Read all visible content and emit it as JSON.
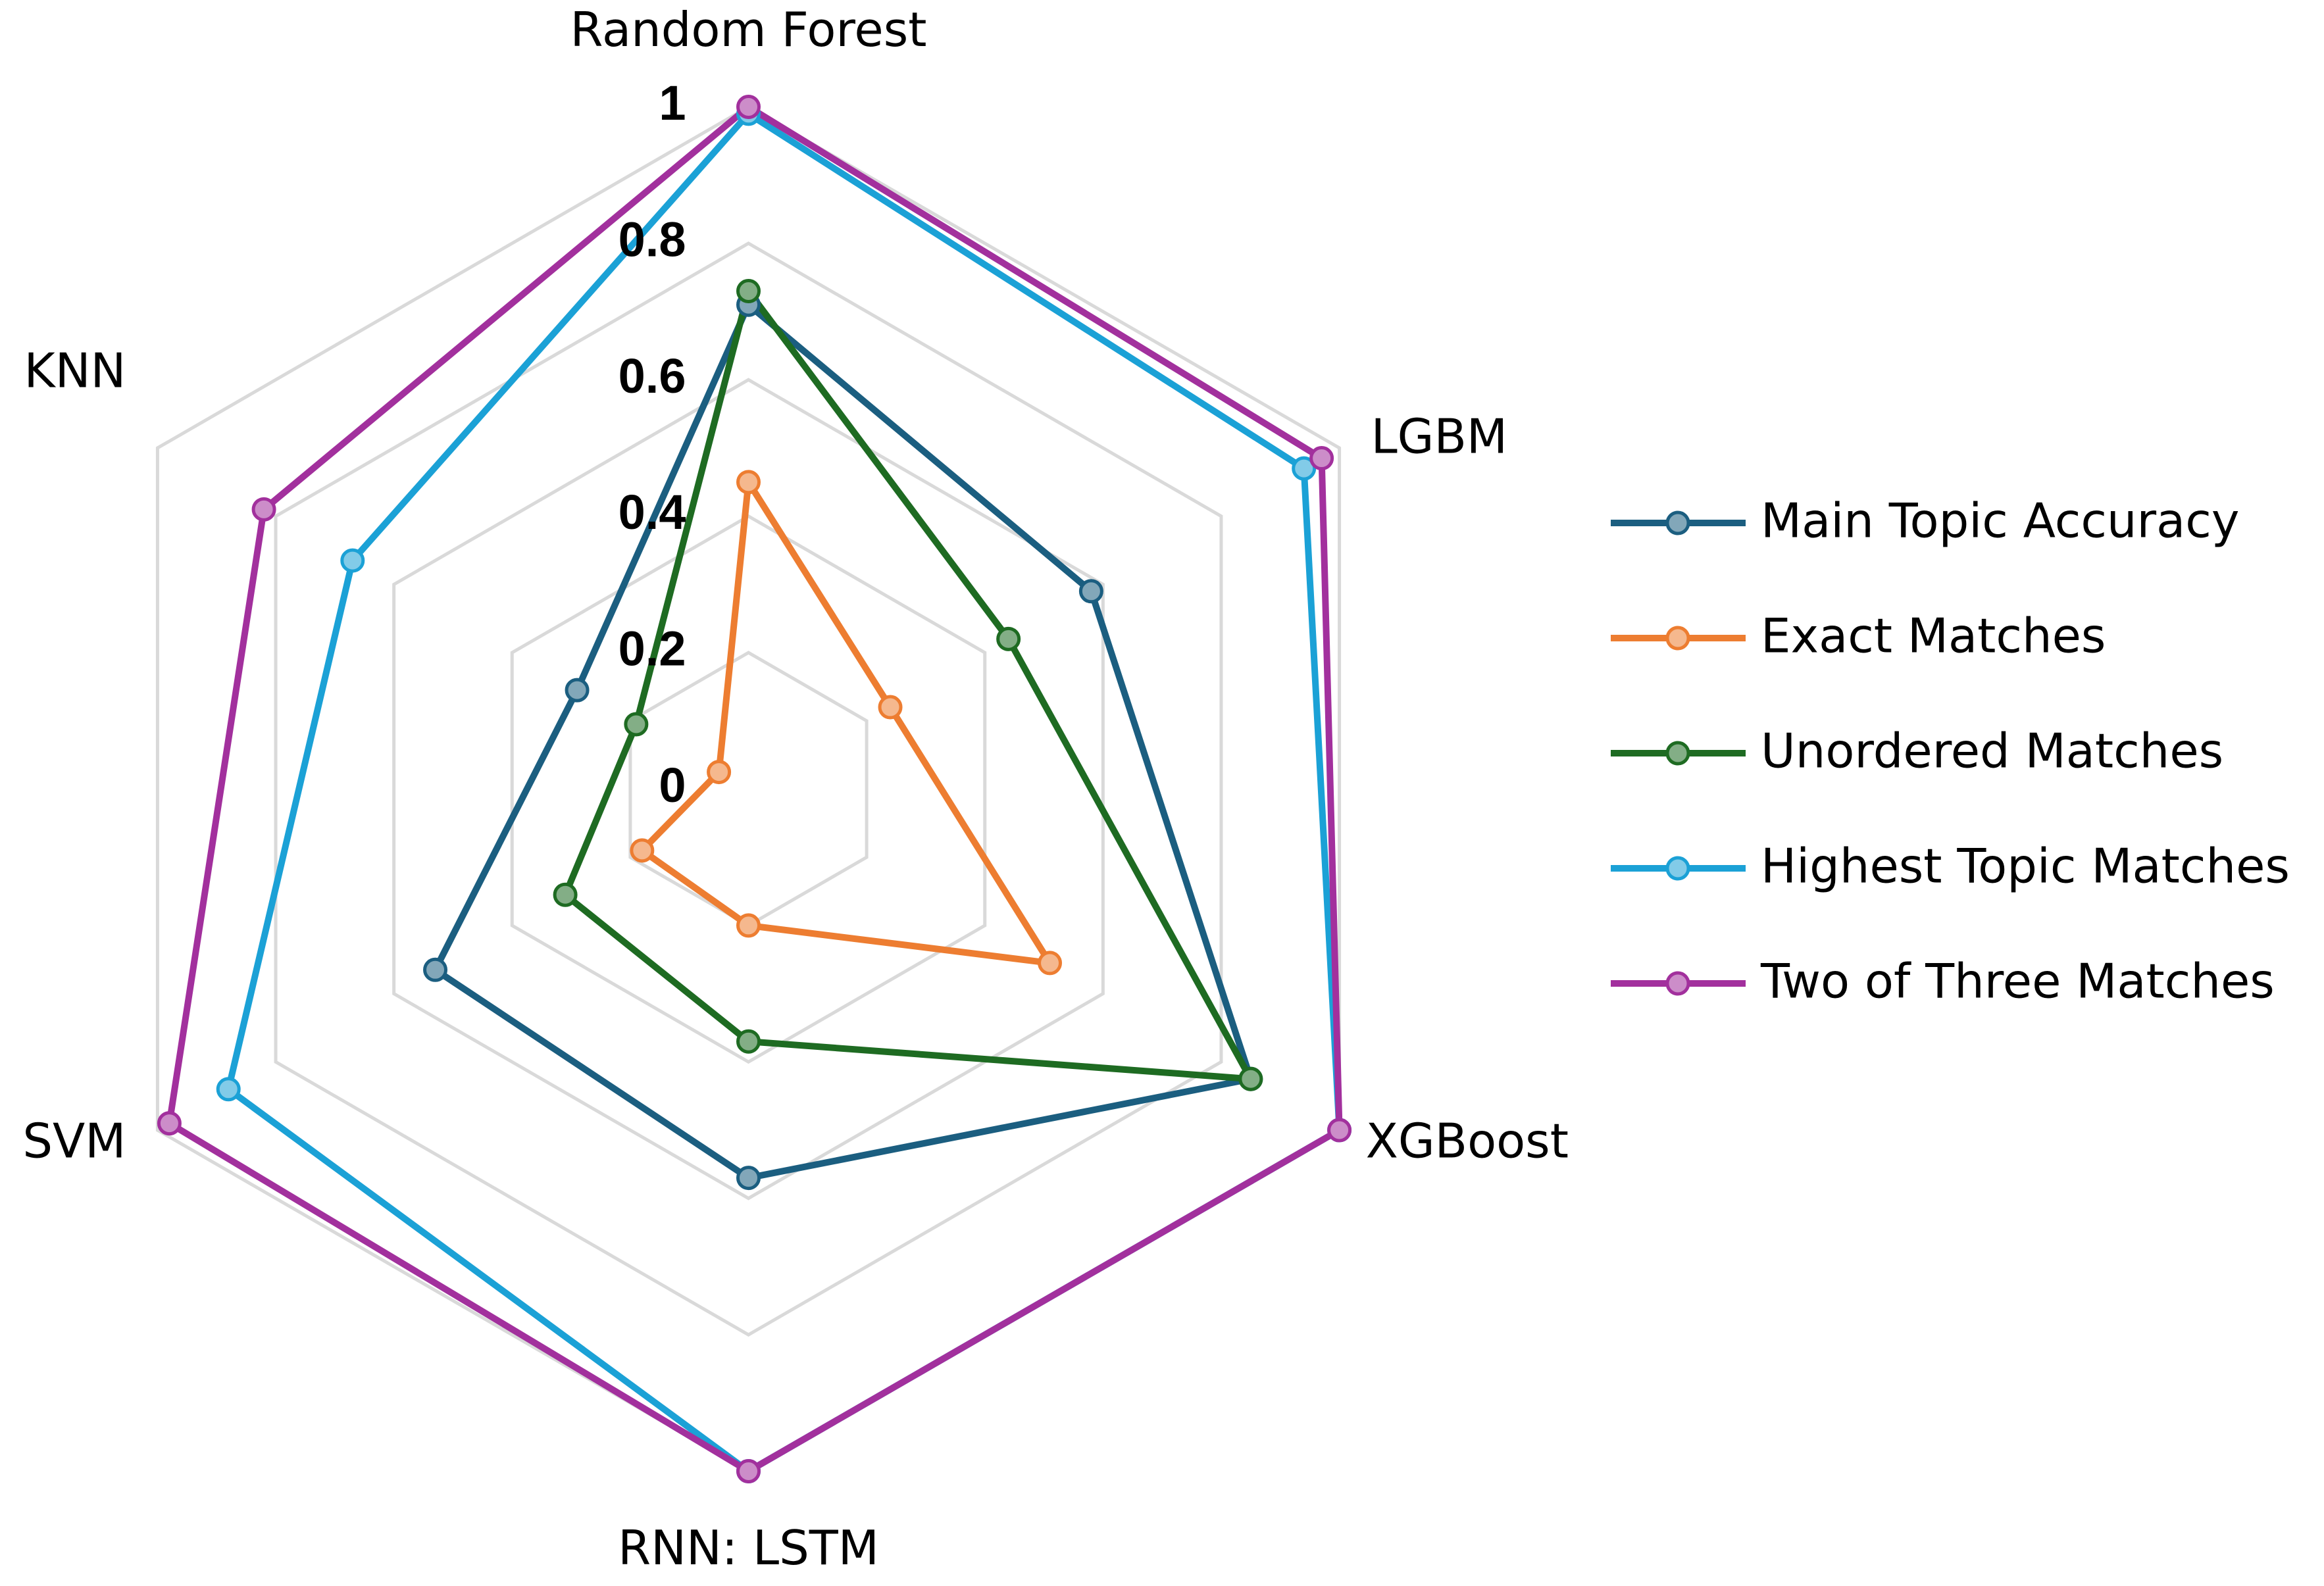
{
  "chart_data": {
    "type": "radar",
    "categories": [
      "Random Forest",
      "LGBM",
      "XGBoost",
      "RNN: LSTM",
      "SVM",
      "KNN"
    ],
    "ylim": [
      0,
      1
    ],
    "yticks": [
      0,
      0.2,
      0.4,
      0.6,
      0.8,
      1
    ],
    "grid": true,
    "legend": "right",
    "series": [
      {
        "name": "Main Topic Accuracy",
        "color": "#1b5e80",
        "values": [
          0.71,
          0.58,
          0.85,
          0.57,
          0.53,
          0.29
        ]
      },
      {
        "name": "Exact Matches",
        "color": "#ed7d31",
        "values": [
          0.45,
          0.24,
          0.51,
          0.2,
          0.18,
          0.05
        ]
      },
      {
        "name": "Unordered Matches",
        "color": "#1e6b22",
        "values": [
          0.73,
          0.44,
          0.85,
          0.37,
          0.31,
          0.19
        ]
      },
      {
        "name": "Highest Topic Matches",
        "color": "#1ba1d6",
        "values": [
          0.99,
          0.94,
          1,
          1,
          0.88,
          0.67
        ]
      },
      {
        "name": "Two of Three Matches",
        "color": "#a2309d",
        "values": [
          1,
          0.97,
          1,
          1,
          0.98,
          0.82
        ]
      }
    ]
  }
}
